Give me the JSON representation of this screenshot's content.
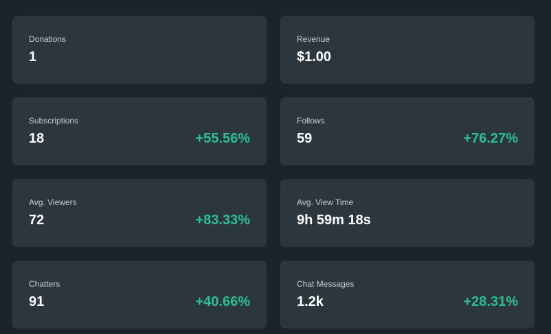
{
  "cards": [
    {
      "label": "Donations",
      "value": "1",
      "change": ""
    },
    {
      "label": "Revenue",
      "value": "$1.00",
      "change": ""
    },
    {
      "label": "Subscriptions",
      "value": "18",
      "change": "+55.56%"
    },
    {
      "label": "Follows",
      "value": "59",
      "change": "+76.27%"
    },
    {
      "label": "Avg. Viewers",
      "value": "72",
      "change": "+83.33%"
    },
    {
      "label": "Avg. View Time",
      "value": "9h 59m 18s",
      "change": ""
    },
    {
      "label": "Chatters",
      "value": "91",
      "change": "+40.66%"
    },
    {
      "label": "Chat Messages",
      "value": "1.2k",
      "change": "+28.31%"
    }
  ],
  "colors": {
    "background": "#1b242d",
    "card": "#2b363f",
    "positive_change": "#2ebf8f"
  }
}
